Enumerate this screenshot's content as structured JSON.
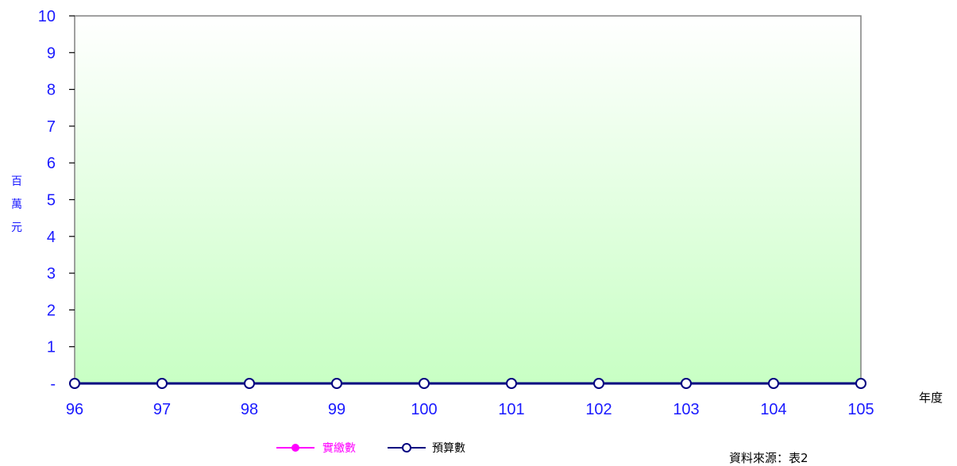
{
  "chart_data": {
    "type": "line",
    "categories": [
      "96",
      "97",
      "98",
      "99",
      "100",
      "101",
      "102",
      "103",
      "104",
      "105"
    ],
    "series": [
      {
        "name": "實繳數",
        "values": [
          0,
          0,
          0,
          0,
          0,
          0,
          0,
          0,
          0,
          0
        ],
        "color": "#ff00ff",
        "marker": "filled-circle"
      },
      {
        "name": "預算數",
        "values": [
          0,
          0,
          0,
          0,
          0,
          0,
          0,
          0,
          0,
          0
        ],
        "color": "#000080",
        "marker": "open-circle"
      }
    ],
    "yticks": [
      "-",
      "1",
      "2",
      "3",
      "4",
      "5",
      "6",
      "7",
      "8",
      "9",
      "10"
    ],
    "ylim": [
      0,
      10
    ],
    "ylabel": "百萬元",
    "xlabel": "年度",
    "source_note": "資料來源：表2",
    "legend_position": "bottom",
    "plot_background": "gradient white to light green",
    "axis_text_color": "#1a1aff"
  }
}
